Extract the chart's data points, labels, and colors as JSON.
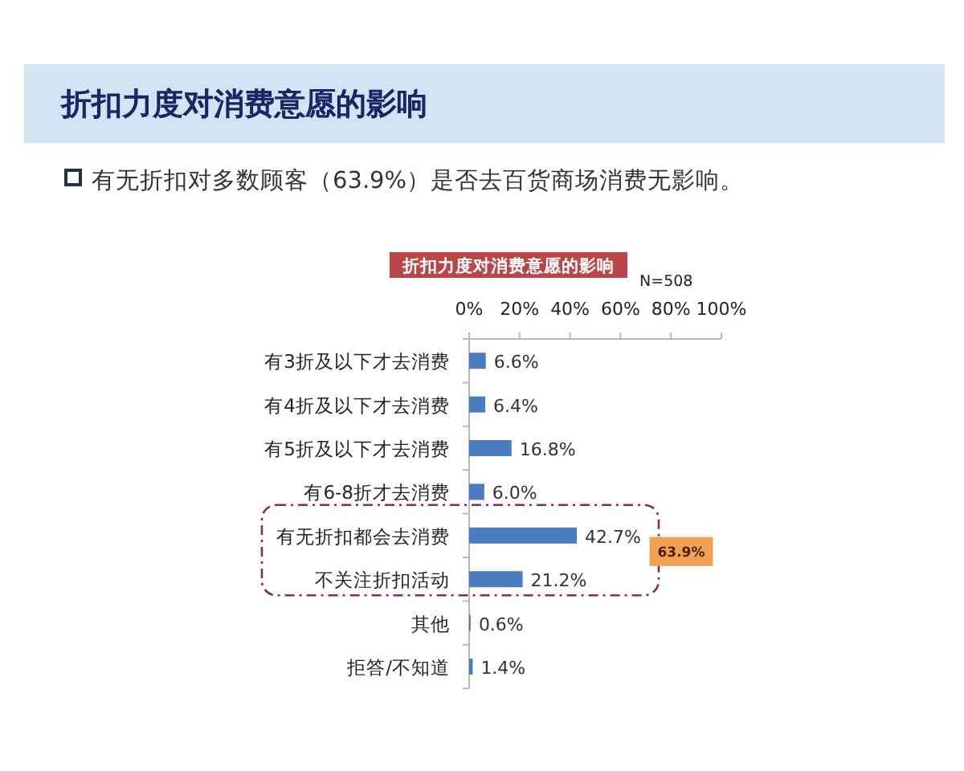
{
  "chart_data": {
    "type": "bar",
    "orientation": "horizontal",
    "title": "折扣力度对消费意愿的影响",
    "subtitle": "有无折扣对多数顾客（63.9%）是否去百货商场消费无影响。",
    "annotations": [
      "折扣力度对消费意愿的影响",
      "N=508",
      "63.9%"
    ],
    "categories": [
      "有3折及以下才去消费",
      "有4折及以下才去消费",
      "有5折及以下才去消费",
      "有6-8折才去消费",
      "有无折扣都会去消费",
      "不关注折扣活动",
      "其他",
      "拒答/不知道"
    ],
    "values": [
      6.6,
      6.4,
      16.8,
      6.0,
      42.7,
      21.2,
      0.6,
      1.4
    ],
    "value_labels": [
      "6.6%",
      "6.4%",
      "16.8%",
      "6.0%",
      "42.7%",
      "21.2%",
      "0.6%",
      "1.4%"
    ],
    "color": "#4a7cbf",
    "xlim": [
      0,
      100
    ],
    "xticks": [
      {
        "value": 0,
        "label": "0%"
      },
      {
        "value": 20,
        "label": "20%"
      },
      {
        "value": 40,
        "label": "40%"
      },
      {
        "value": 60,
        "label": "60%"
      },
      {
        "value": 80,
        "label": "80%"
      },
      {
        "value": 100,
        "label": "100%"
      }
    ]
  }
}
